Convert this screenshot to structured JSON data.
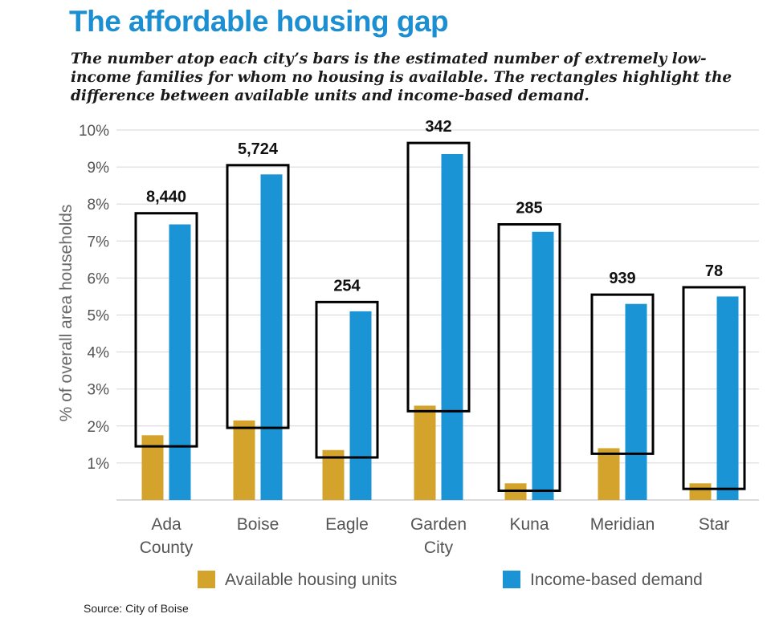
{
  "title": "The affordable housing gap",
  "subtitle": "The number atop each city’s bars is the estimated number of extremely low-income families for whom no housing is available. The rectangles highlight the difference between available units and income-based demand.",
  "source": "Source: City of Boise",
  "colors": {
    "available": "#d4a32c",
    "demand": "#1b94d5",
    "title": "#1b8fd2"
  },
  "chart_data": {
    "type": "bar",
    "title": "The affordable housing gap",
    "xlabel": "",
    "ylabel": "% of overall area households",
    "ylim": [
      0,
      10
    ],
    "yticks": [
      1,
      2,
      3,
      4,
      5,
      6,
      7,
      8,
      9,
      10
    ],
    "ytick_labels": [
      "1%",
      "2%",
      "3%",
      "4%",
      "5%",
      "6%",
      "7%",
      "8%",
      "9%",
      "10%"
    ],
    "grid": true,
    "legend_position": "bottom",
    "categories": [
      [
        "Ada",
        "County"
      ],
      [
        "Boise"
      ],
      [
        "Eagle"
      ],
      [
        "Garden",
        "City"
      ],
      [
        "Kuna"
      ],
      [
        "Meridian"
      ],
      [
        "Star"
      ]
    ],
    "series": [
      {
        "name": "Available housing units",
        "values": [
          1.75,
          2.15,
          1.35,
          2.55,
          0.45,
          1.4,
          0.45
        ]
      },
      {
        "name": "Income-based demand",
        "values": [
          7.45,
          8.8,
          5.1,
          9.35,
          7.25,
          5.3,
          5.5
        ]
      }
    ],
    "gap_rectangles": [
      {
        "low": 1.45,
        "high": 7.75
      },
      {
        "low": 1.95,
        "high": 9.05
      },
      {
        "low": 1.15,
        "high": 5.35
      },
      {
        "low": 2.4,
        "high": 9.65
      },
      {
        "low": 0.25,
        "high": 7.45
      },
      {
        "low": 1.25,
        "high": 5.55
      },
      {
        "low": 0.3,
        "high": 5.75
      }
    ],
    "annotations": [
      "8,440",
      "5,724",
      "254",
      "342",
      "285",
      "939",
      "78"
    ]
  }
}
